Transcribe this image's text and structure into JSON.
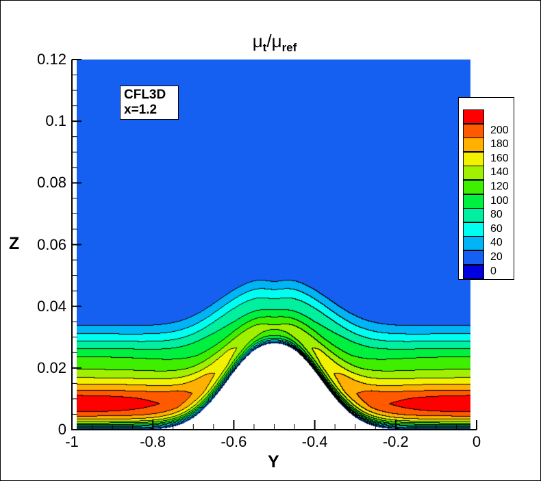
{
  "chart_data": {
    "type": "contour",
    "title": "μt/μref",
    "title_parts": {
      "main1": "μ",
      "sub1": "t",
      "sep": "/",
      "main2": "μ",
      "sub2": "ref"
    },
    "xlabel": "Y",
    "ylabel": "Z",
    "xlim": [
      -1,
      0
    ],
    "ylim": [
      0,
      0.12
    ],
    "xticks": [
      "-1",
      "-0.8",
      "-0.6",
      "-0.4",
      "-0.2",
      "0"
    ],
    "yticks": [
      "0",
      "0.02",
      "0.04",
      "0.06",
      "0.08",
      "0.1",
      "0.12"
    ],
    "annotation": [
      "CFL3D",
      "x=1.2"
    ],
    "legend": {
      "placement": "right",
      "levels": [
        "200",
        "180",
        "160",
        "140",
        "120",
        "100",
        "80",
        "60",
        "40",
        "20",
        "0"
      ],
      "colors": [
        "#ff0000",
        "#ff5a00",
        "#ffb000",
        "#f2f200",
        "#a0f000",
        "#3ef000",
        "#00f040",
        "#00f0a0",
        "#00fff0",
        "#00b4f5",
        "#1560f0",
        "#0000e0"
      ]
    },
    "features": {
      "bump_peak": {
        "y": -0.5,
        "z": 0.028
      },
      "outer_contour_far_z": 0.034,
      "outer_contour_peak_z": 0.05,
      "max_value_region": {
        "z": 0.009,
        "value": 210
      }
    }
  }
}
